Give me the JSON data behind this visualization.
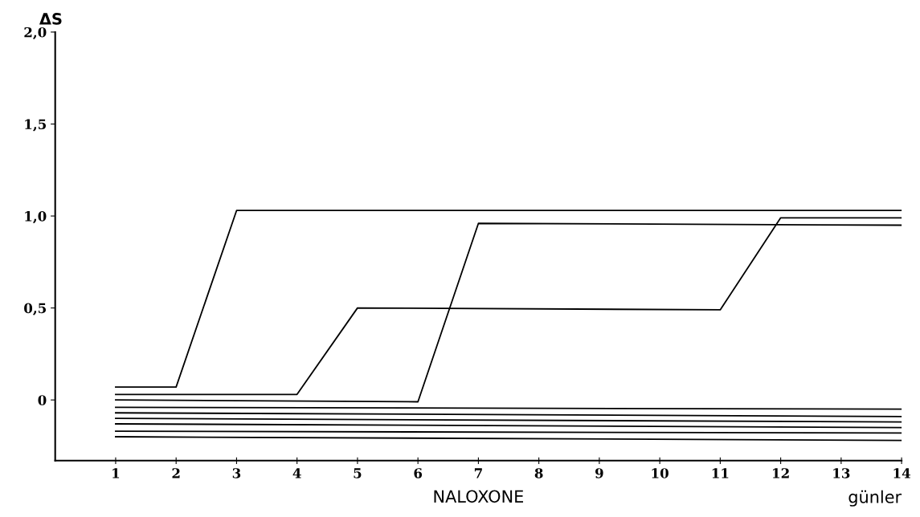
{
  "chart_data": {
    "type": "line",
    "xlabel": "NALOXONE",
    "ylabel": "ΔS",
    "annotations": [
      "günler"
    ],
    "xlim": [
      0,
      14
    ],
    "xticks": [
      1,
      2,
      3,
      4,
      5,
      6,
      7,
      8,
      9,
      10,
      11,
      12,
      13,
      14
    ],
    "ylim": [
      -0.33,
      2.0
    ],
    "yticks": [
      {
        "value": 0,
        "label": "0"
      },
      {
        "value": 0.5,
        "label": "0,5"
      },
      {
        "value": 1.0,
        "label": "1,0"
      },
      {
        "value": 1.5,
        "label": "1,5"
      },
      {
        "value": 2.0,
        "label": "2,0"
      }
    ],
    "grid": false,
    "legend": false,
    "marker": "none",
    "line_style": "solid",
    "series": [
      {
        "color": "#000000",
        "x": [
          1,
          2,
          3,
          14
        ],
        "values": [
          0.07,
          0.07,
          1.03,
          1.03
        ]
      },
      {
        "color": "#000000",
        "x": [
          1,
          4,
          5,
          11,
          12,
          14
        ],
        "values": [
          0.03,
          0.03,
          0.5,
          0.49,
          0.99,
          0.99
        ]
      },
      {
        "color": "#000000",
        "x": [
          1,
          6,
          7,
          14
        ],
        "values": [
          0.0,
          -0.01,
          0.96,
          0.95
        ]
      },
      {
        "color": "#000000",
        "x": [
          1,
          14
        ],
        "values": [
          -0.04,
          -0.05
        ]
      },
      {
        "color": "#000000",
        "x": [
          1,
          14
        ],
        "values": [
          -0.07,
          -0.09
        ]
      },
      {
        "color": "#000000",
        "x": [
          1,
          14
        ],
        "values": [
          -0.1,
          -0.12
        ]
      },
      {
        "color": "#000000",
        "x": [
          1,
          14
        ],
        "values": [
          -0.13,
          -0.15
        ]
      },
      {
        "color": "#000000",
        "x": [
          1,
          14
        ],
        "values": [
          -0.17,
          -0.18
        ]
      },
      {
        "color": "#000000",
        "x": [
          1,
          14
        ],
        "values": [
          -0.2,
          -0.22
        ]
      }
    ]
  }
}
